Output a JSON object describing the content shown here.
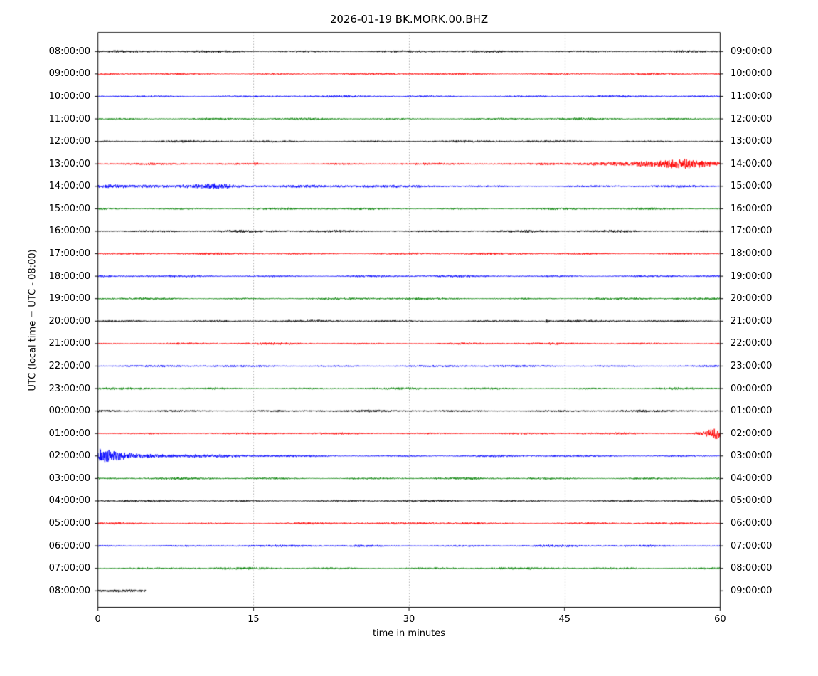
{
  "title": "2026-01-19 BK.MORK.00.BHZ",
  "xlabel": "time in minutes",
  "ylabel": "UTC (local time = UTC - 08:00)",
  "chart_data": {
    "type": "line",
    "title": "2026-01-19 BK.MORK.00.BHZ",
    "xlabel": "time in minutes",
    "ylabel": "UTC (local time = UTC - 08:00)",
    "xlim": [
      0,
      60
    ],
    "x_ticks": [
      0,
      15,
      30,
      45,
      60
    ],
    "gridlines_minutes": [
      15,
      30,
      45
    ],
    "grid_style": "dotted-vertical",
    "legend": "none",
    "palette_cycle": [
      "#000000",
      "#ff0000",
      "#0000ff",
      "#008000"
    ],
    "rows": [
      {
        "left_label": "08:00:00",
        "right_label": "09:00:00",
        "color": "#000000",
        "noise": 0.95,
        "extent": [
          0,
          60
        ],
        "envelope": []
      },
      {
        "left_label": "09:00:00",
        "right_label": "10:00:00",
        "color": "#ff0000",
        "noise": 0.85,
        "extent": [
          0,
          60
        ],
        "envelope": []
      },
      {
        "left_label": "10:00:00",
        "right_label": "11:00:00",
        "color": "#0000ff",
        "noise": 0.85,
        "extent": [
          0,
          60
        ],
        "envelope": []
      },
      {
        "left_label": "11:00:00",
        "right_label": "12:00:00",
        "color": "#008000",
        "noise": 0.85,
        "extent": [
          0,
          60
        ],
        "envelope": []
      },
      {
        "left_label": "12:00:00",
        "right_label": "13:00:00",
        "color": "#000000",
        "noise": 0.9,
        "extent": [
          0,
          60
        ],
        "envelope": []
      },
      {
        "left_label": "13:00:00",
        "right_label": "14:00:00",
        "color": "#ff0000",
        "noise": 0.85,
        "extent": [
          0,
          60
        ],
        "envelope": [
          [
            15,
            0
          ],
          [
            15.2,
            1.6
          ],
          [
            15.5,
            0
          ],
          [
            42,
            0
          ],
          [
            43,
            0.7
          ],
          [
            45,
            0.9
          ],
          [
            47,
            1.1
          ],
          [
            50,
            1.4
          ],
          [
            52,
            2.2
          ],
          [
            54,
            3.2
          ],
          [
            56,
            4.8
          ],
          [
            57.5,
            4.2
          ],
          [
            58.8,
            2.2
          ],
          [
            60,
            0.8
          ]
        ]
      },
      {
        "left_label": "14:00:00",
        "right_label": "15:00:00",
        "color": "#0000ff",
        "noise": 0.9,
        "extent": [
          0,
          60
        ],
        "envelope": [
          [
            0,
            0.9
          ],
          [
            3,
            0.6
          ],
          [
            6,
            0.8
          ],
          [
            9,
            1.2
          ],
          [
            10,
            1.9
          ],
          [
            11,
            2.3
          ],
          [
            12,
            1.8
          ],
          [
            13,
            1.1
          ],
          [
            15,
            0.7
          ],
          [
            20,
            0.5
          ],
          [
            26,
            0.4
          ],
          [
            32,
            0.2
          ],
          [
            40,
            0
          ]
        ]
      },
      {
        "left_label": "15:00:00",
        "right_label": "16:00:00",
        "color": "#008000",
        "noise": 0.9,
        "extent": [
          0,
          60
        ],
        "envelope": []
      },
      {
        "left_label": "16:00:00",
        "right_label": "17:00:00",
        "color": "#000000",
        "noise": 1.05,
        "extent": [
          0,
          60
        ],
        "envelope": []
      },
      {
        "left_label": "17:00:00",
        "right_label": "18:00:00",
        "color": "#ff0000",
        "noise": 0.9,
        "extent": [
          0,
          60
        ],
        "envelope": []
      },
      {
        "left_label": "18:00:00",
        "right_label": "19:00:00",
        "color": "#0000ff",
        "noise": 0.85,
        "extent": [
          0,
          60
        ],
        "envelope": []
      },
      {
        "left_label": "19:00:00",
        "right_label": "20:00:00",
        "color": "#008000",
        "noise": 0.9,
        "extent": [
          0,
          60
        ],
        "envelope": []
      },
      {
        "left_label": "20:00:00",
        "right_label": "21:00:00",
        "color": "#000000",
        "noise": 0.95,
        "extent": [
          0,
          60
        ],
        "envelope": [
          [
            43,
            0
          ],
          [
            43.3,
            1.3
          ],
          [
            43.7,
            0
          ]
        ]
      },
      {
        "left_label": "21:00:00",
        "right_label": "22:00:00",
        "color": "#ff0000",
        "noise": 0.9,
        "extent": [
          0,
          60
        ],
        "envelope": []
      },
      {
        "left_label": "22:00:00",
        "right_label": "23:00:00",
        "color": "#0000ff",
        "noise": 0.85,
        "extent": [
          0,
          60
        ],
        "envelope": []
      },
      {
        "left_label": "23:00:00",
        "right_label": "00:00:00",
        "color": "#008000",
        "noise": 0.9,
        "extent": [
          0,
          60
        ],
        "envelope": []
      },
      {
        "left_label": "00:00:00",
        "right_label": "01:00:00",
        "color": "#000000",
        "noise": 0.95,
        "extent": [
          0,
          60
        ],
        "envelope": []
      },
      {
        "left_label": "01:00:00",
        "right_label": "02:00:00",
        "color": "#ff0000",
        "noise": 0.85,
        "extent": [
          0,
          60
        ],
        "envelope": [
          [
            57.3,
            0
          ],
          [
            58.2,
            1.5
          ],
          [
            59,
            3.5
          ],
          [
            59.5,
            5.2
          ],
          [
            60,
            5.8
          ]
        ]
      },
      {
        "left_label": "02:00:00",
        "right_label": "03:00:00",
        "color": "#0000ff",
        "noise": 0.85,
        "extent": [
          0,
          60
        ],
        "envelope": [
          [
            0,
            8.5
          ],
          [
            0.4,
            9.5
          ],
          [
            0.8,
            7
          ],
          [
            1.5,
            5
          ],
          [
            2.2,
            3.6
          ],
          [
            3,
            2.8
          ],
          [
            4,
            2.2
          ],
          [
            5,
            1.8
          ],
          [
            6.5,
            1.4
          ],
          [
            8,
            1.1
          ],
          [
            10,
            0.8
          ],
          [
            12,
            0.6
          ],
          [
            14,
            0.4
          ],
          [
            18,
            0.2
          ],
          [
            25,
            0
          ]
        ]
      },
      {
        "left_label": "03:00:00",
        "right_label": "04:00:00",
        "color": "#008000",
        "noise": 0.9,
        "extent": [
          0,
          60
        ],
        "envelope": []
      },
      {
        "left_label": "04:00:00",
        "right_label": "05:00:00",
        "color": "#000000",
        "noise": 0.9,
        "extent": [
          0,
          60
        ],
        "envelope": []
      },
      {
        "left_label": "05:00:00",
        "right_label": "06:00:00",
        "color": "#ff0000",
        "noise": 0.9,
        "extent": [
          0,
          60
        ],
        "envelope": [
          [
            30,
            0
          ],
          [
            32,
            0.6
          ],
          [
            34,
            0.8
          ],
          [
            36,
            0.6
          ],
          [
            38,
            0
          ]
        ]
      },
      {
        "left_label": "06:00:00",
        "right_label": "07:00:00",
        "color": "#0000ff",
        "noise": 0.9,
        "extent": [
          0,
          60
        ],
        "envelope": []
      },
      {
        "left_label": "07:00:00",
        "right_label": "08:00:00",
        "color": "#008000",
        "noise": 0.95,
        "extent": [
          0,
          60
        ],
        "envelope": []
      },
      {
        "left_label": "08:00:00",
        "right_label": "09:00:00",
        "color": "#000000",
        "noise": 1.1,
        "extent": [
          0,
          4.6
        ],
        "envelope": []
      }
    ]
  }
}
